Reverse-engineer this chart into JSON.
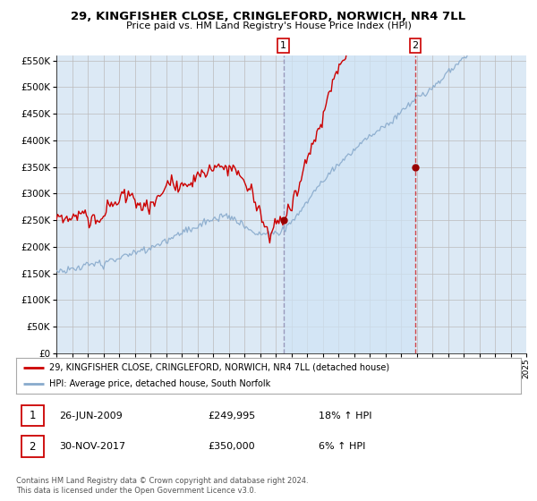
{
  "title": "29, KINGFISHER CLOSE, CRINGLEFORD, NORWICH, NR4 7LL",
  "subtitle": "Price paid vs. HM Land Registry's House Price Index (HPI)",
  "legend_line1": "29, KINGFISHER CLOSE, CRINGLEFORD, NORWICH, NR4 7LL (detached house)",
  "legend_line2": "HPI: Average price, detached house, South Norfolk",
  "annotation1_label": "1",
  "annotation1_date": "26-JUN-2009",
  "annotation1_price": "£249,995",
  "annotation1_hpi": "18% ↑ HPI",
  "annotation2_label": "2",
  "annotation2_date": "30-NOV-2017",
  "annotation2_price": "£350,000",
  "annotation2_hpi": "6% ↑ HPI",
  "footer": "Contains HM Land Registry data © Crown copyright and database right 2024.\nThis data is licensed under the Open Government Licence v3.0.",
  "red_color": "#cc0000",
  "blue_color": "#88aacc",
  "shade_color": "#d0e4f5",
  "bg_color": "#dce9f5",
  "plot_bg": "#ffffff",
  "grid_color": "#bbbbbb",
  "vline1_color": "#aaaacc",
  "vline2_color": "#cc4444",
  "marker1_date_year": 2009.49,
  "marker2_date_year": 2017.92,
  "sale1_value": 249995,
  "sale2_value": 350000,
  "ylim_min": 0,
  "ylim_max": 560000,
  "xlim_min": 1995,
  "xlim_max": 2025
}
